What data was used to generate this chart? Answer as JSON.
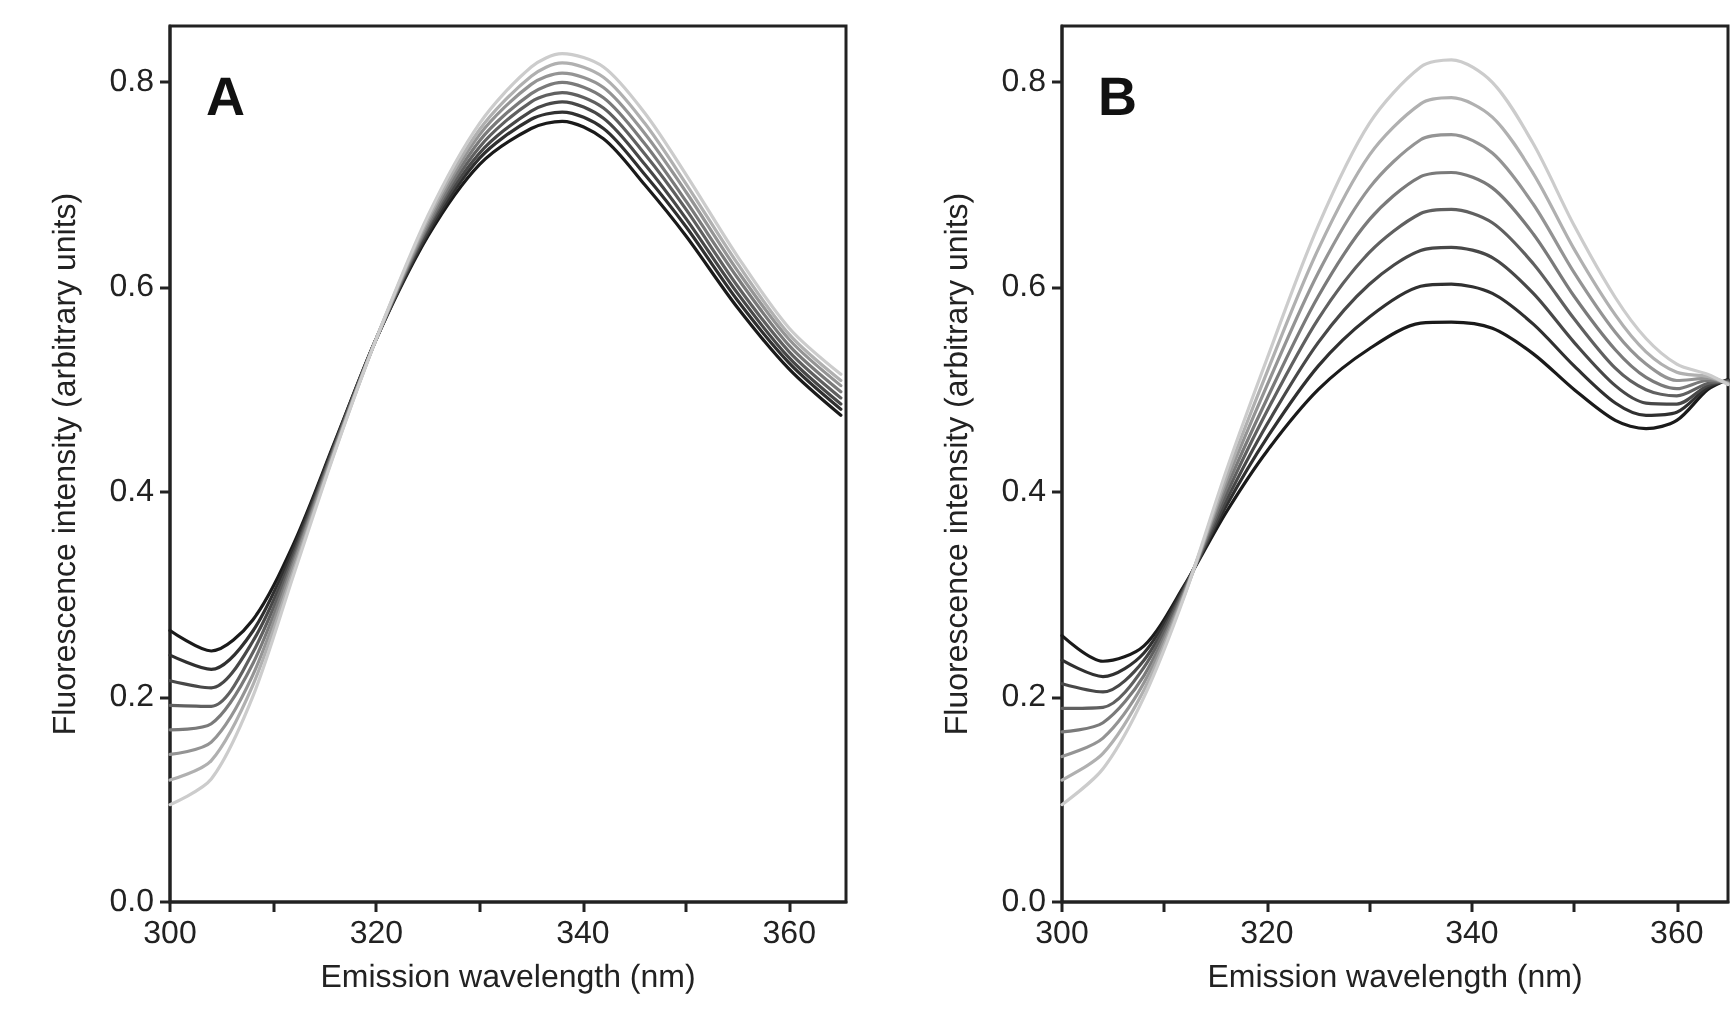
{
  "chart_data": [
    {
      "type": "line",
      "annotations": [
        "A"
      ],
      "xlabel": "Emission wavelength (nm)",
      "ylabel": "Fluorescence intensity (arbitrary units)",
      "x": [
        300,
        304,
        308,
        312,
        316,
        320,
        325,
        330,
        335,
        338,
        342,
        346,
        350,
        355,
        360,
        365
      ],
      "series": [
        {
          "color": "#1a1a1a",
          "values": [
            0.265,
            0.245,
            0.275,
            0.35,
            0.45,
            0.55,
            0.65,
            0.72,
            0.755,
            0.762,
            0.745,
            0.7,
            0.65,
            0.58,
            0.52,
            0.475
          ]
        },
        {
          "color": "#303030",
          "values": [
            0.241,
            0.227,
            0.264,
            0.346,
            0.449,
            0.55,
            0.653,
            0.726,
            0.764,
            0.771,
            0.755,
            0.71,
            0.659,
            0.587,
            0.526,
            0.481
          ]
        },
        {
          "color": "#484848",
          "values": [
            0.216,
            0.209,
            0.254,
            0.341,
            0.447,
            0.55,
            0.656,
            0.731,
            0.772,
            0.781,
            0.765,
            0.72,
            0.667,
            0.594,
            0.531,
            0.486
          ]
        },
        {
          "color": "#606060",
          "values": [
            0.192,
            0.191,
            0.243,
            0.337,
            0.446,
            0.55,
            0.659,
            0.737,
            0.781,
            0.79,
            0.775,
            0.73,
            0.676,
            0.601,
            0.537,
            0.492
          ]
        },
        {
          "color": "#7a7a7a",
          "values": [
            0.168,
            0.174,
            0.232,
            0.333,
            0.444,
            0.55,
            0.661,
            0.743,
            0.789,
            0.8,
            0.785,
            0.74,
            0.684,
            0.609,
            0.543,
            0.498
          ]
        },
        {
          "color": "#949494",
          "values": [
            0.144,
            0.156,
            0.221,
            0.329,
            0.443,
            0.55,
            0.664,
            0.749,
            0.798,
            0.809,
            0.795,
            0.75,
            0.693,
            0.616,
            0.549,
            0.504
          ]
        },
        {
          "color": "#b0b0b0",
          "values": [
            0.119,
            0.138,
            0.211,
            0.324,
            0.441,
            0.55,
            0.667,
            0.754,
            0.806,
            0.819,
            0.805,
            0.76,
            0.701,
            0.623,
            0.554,
            0.509
          ]
        },
        {
          "color": "#cccccc",
          "values": [
            0.095,
            0.12,
            0.2,
            0.32,
            0.44,
            0.55,
            0.67,
            0.76,
            0.815,
            0.828,
            0.815,
            0.77,
            0.71,
            0.63,
            0.56,
            0.515
          ]
        }
      ],
      "xlim": [
        300,
        365.5
      ],
      "ylim": [
        0,
        0.855
      ],
      "xticks": [
        300,
        {
          "value": 310,
          "label": null
        },
        320,
        {
          "value": 330,
          "label": null
        },
        340,
        {
          "value": 350,
          "label": null
        },
        360
      ],
      "yticks": [
        {
          "value": 0,
          "label": "0.0"
        },
        0.2,
        0.4,
        0.6,
        0.8
      ],
      "grid": false,
      "marker": "none",
      "line_style": "solid"
    },
    {
      "type": "line",
      "annotations": [
        "B"
      ],
      "xlabel": "Emission wavelength (nm)",
      "ylabel": "Fluorescence intensity (arbitrary units)",
      "x": [
        300,
        304,
        308,
        312,
        316,
        320,
        325,
        330,
        335,
        338,
        342,
        346,
        350,
        354,
        357,
        360,
        363,
        365
      ],
      "series": [
        {
          "color": "#1a1a1a",
          "values": [
            0.26,
            0.235,
            0.25,
            0.31,
            0.38,
            0.44,
            0.5,
            0.54,
            0.565,
            0.566,
            0.56,
            0.535,
            0.5,
            0.47,
            0.462,
            0.47,
            0.5,
            0.51
          ]
        },
        {
          "color": "#303030",
          "values": [
            0.236,
            0.22,
            0.243,
            0.309,
            0.386,
            0.453,
            0.523,
            0.571,
            0.601,
            0.603,
            0.594,
            0.564,
            0.523,
            0.487,
            0.475,
            0.478,
            0.502,
            0.509
          ]
        },
        {
          "color": "#484848",
          "values": [
            0.213,
            0.205,
            0.236,
            0.307,
            0.391,
            0.466,
            0.546,
            0.603,
            0.636,
            0.639,
            0.629,
            0.594,
            0.546,
            0.504,
            0.487,
            0.486,
            0.504,
            0.509
          ]
        },
        {
          "color": "#606060",
          "values": [
            0.189,
            0.19,
            0.229,
            0.306,
            0.397,
            0.479,
            0.569,
            0.634,
            0.672,
            0.676,
            0.663,
            0.623,
            0.569,
            0.521,
            0.5,
            0.494,
            0.506,
            0.508
          ]
        },
        {
          "color": "#7a7a7a",
          "values": [
            0.166,
            0.175,
            0.221,
            0.304,
            0.403,
            0.491,
            0.591,
            0.666,
            0.708,
            0.712,
            0.697,
            0.652,
            0.591,
            0.539,
            0.512,
            0.501,
            0.509,
            0.507
          ]
        },
        {
          "color": "#949494",
          "values": [
            0.142,
            0.16,
            0.214,
            0.303,
            0.409,
            0.504,
            0.614,
            0.697,
            0.744,
            0.749,
            0.731,
            0.681,
            0.614,
            0.556,
            0.525,
            0.509,
            0.511,
            0.506
          ]
        },
        {
          "color": "#b0b0b0",
          "values": [
            0.119,
            0.145,
            0.207,
            0.301,
            0.414,
            0.517,
            0.637,
            0.729,
            0.779,
            0.785,
            0.766,
            0.711,
            0.637,
            0.573,
            0.537,
            0.517,
            0.513,
            0.506
          ]
        },
        {
          "color": "#cccccc",
          "values": [
            0.095,
            0.13,
            0.2,
            0.3,
            0.42,
            0.53,
            0.66,
            0.76,
            0.815,
            0.822,
            0.8,
            0.74,
            0.66,
            0.59,
            0.55,
            0.525,
            0.515,
            0.505
          ]
        }
      ],
      "xlim": [
        300,
        365
      ],
      "ylim": [
        0,
        0.855
      ],
      "xticks": [
        300,
        {
          "value": 310,
          "label": null
        },
        320,
        {
          "value": 330,
          "label": null
        },
        340,
        {
          "value": 350,
          "label": null
        },
        360
      ],
      "yticks": [
        {
          "value": 0,
          "label": "0.0"
        },
        0.2,
        0.4,
        0.6,
        0.8
      ],
      "grid": false,
      "marker": "none",
      "line_style": "solid"
    }
  ]
}
